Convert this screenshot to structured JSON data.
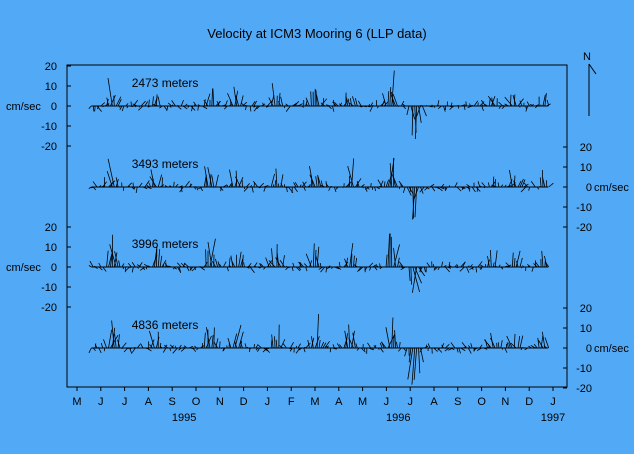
{
  "chart_data": {
    "type": "stick-plot",
    "title": "Velocity at ICM3 Mooring 6 (LLP data)",
    "unit_label": "cm/sec",
    "north_label": "N",
    "y_ticks": [
      "20",
      "10",
      "0",
      "-10",
      "-20"
    ],
    "y_tick_values": [
      20,
      10,
      0,
      -10,
      -20
    ],
    "ylim": [
      -20,
      20
    ],
    "months": [
      "M",
      "J",
      "J",
      "A",
      "S",
      "O",
      "N",
      "D",
      "J",
      "F",
      "M",
      "A",
      "M",
      "J",
      "J",
      "A",
      "S",
      "O",
      "N",
      "D",
      "J"
    ],
    "years": [
      {
        "label": "1995",
        "month_index": 4.5
      },
      {
        "label": "1996",
        "month_index": 13.5
      },
      {
        "label": "1997",
        "month_index": 20
      }
    ],
    "panels": [
      {
        "depth_label": "2473 meters",
        "axis_side": "left",
        "seed": 11
      },
      {
        "depth_label": "3493 meters",
        "axis_side": "right",
        "seed": 23
      },
      {
        "depth_label": "3996 meters",
        "axis_side": "left",
        "seed": 37
      },
      {
        "depth_label": "4836 meters",
        "axis_side": "right",
        "seed": 53
      }
    ],
    "sticks_per_month": 12,
    "events": [
      {
        "t": 1.5,
        "amp": 10,
        "dir": "up"
      },
      {
        "t": 3.3,
        "amp": 6,
        "dir": "up"
      },
      {
        "t": 5.6,
        "amp": 9,
        "dir": "up"
      },
      {
        "t": 6.7,
        "amp": 7,
        "dir": "up"
      },
      {
        "t": 8.4,
        "amp": 8,
        "dir": "up"
      },
      {
        "t": 10.0,
        "amp": 10,
        "dir": "up"
      },
      {
        "t": 11.5,
        "amp": 9,
        "dir": "up"
      },
      {
        "t": 13.2,
        "amp": 13,
        "dir": "up"
      },
      {
        "t": 14.2,
        "amp": -12,
        "dir": "down"
      },
      {
        "t": 17.5,
        "amp": 5,
        "dir": "up"
      },
      {
        "t": 18.4,
        "amp": 6,
        "dir": "up"
      },
      {
        "t": 19.6,
        "amp": 5,
        "dir": "up"
      }
    ],
    "grid": false,
    "legend": "none"
  }
}
